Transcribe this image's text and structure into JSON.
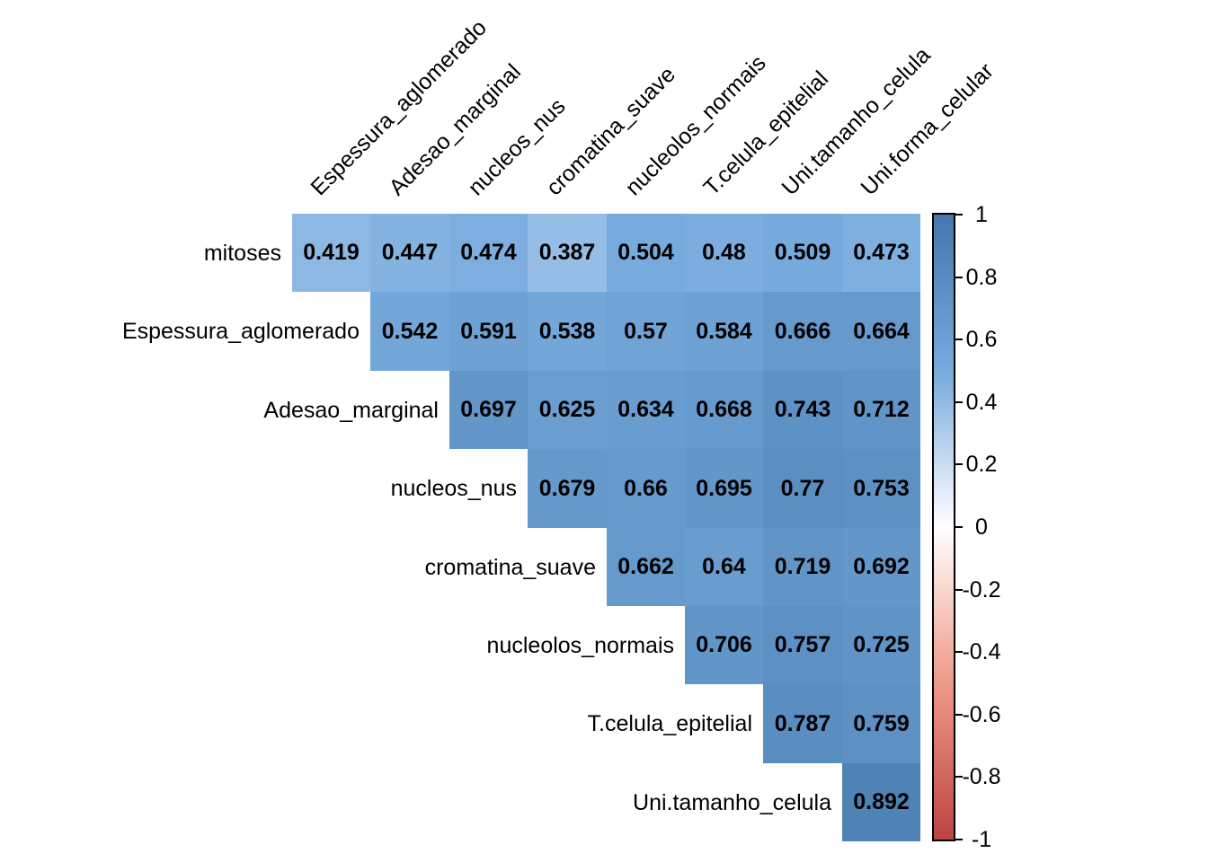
{
  "figure": {
    "kind": "correlation-matrix-plot",
    "background": "#FFFFFF"
  },
  "chart_data": {
    "type": "heatmap",
    "subtype": "upper-triangle-correlation-matrix",
    "title": "",
    "row_labels": [
      "mitoses",
      "Espessura_aglomerado",
      "Adesao_marginal",
      "nucleos_nus",
      "cromatina_suave",
      "nucleolos_normais",
      "T.celula_epitelial",
      "Uni.tamanho_celula"
    ],
    "col_labels": [
      "Espessura_aglomerado",
      "Adesao_marginal",
      "nucleos_nus",
      "cromatina_suave",
      "nucleolos_normais",
      "T.celula_epitelial",
      "Uni.tamanho_celula",
      "Uni.forma_celular"
    ],
    "matrix": [
      [
        "0.419",
        "0.447",
        "0.474",
        "0.387",
        "0.504",
        "0.48",
        "0.509",
        "0.473"
      ],
      [
        null,
        "0.542",
        "0.591",
        "0.538",
        "0.57",
        "0.584",
        "0.666",
        "0.664"
      ],
      [
        null,
        null,
        "0.697",
        "0.625",
        "0.634",
        "0.668",
        "0.743",
        "0.712"
      ],
      [
        null,
        null,
        null,
        "0.679",
        "0.66",
        "0.695",
        "0.77",
        "0.753"
      ],
      [
        null,
        null,
        null,
        null,
        "0.662",
        "0.64",
        "0.719",
        "0.692"
      ],
      [
        null,
        null,
        null,
        null,
        null,
        "0.706",
        "0.757",
        "0.725"
      ],
      [
        null,
        null,
        null,
        null,
        null,
        null,
        "0.787",
        "0.759"
      ],
      [
        null,
        null,
        null,
        null,
        null,
        null,
        null,
        "0.892"
      ]
    ],
    "value_text_color": "#000000",
    "grid": false,
    "legend_position": "right",
    "colorbar": {
      "min": -1,
      "max": 1,
      "tick_labels": [
        "1",
        "0.8",
        "0.6",
        "0.4",
        "0.2",
        "0",
        "-0.2",
        "-0.4",
        "-0.6",
        "-0.8",
        "-1"
      ],
      "gradient_stops": [
        {
          "value": 1,
          "color": "#4477AA"
        },
        {
          "value": 0.5,
          "color": "#77AADD"
        },
        {
          "value": 0,
          "color": "#FFFFFF"
        },
        {
          "value": -0.5,
          "color": "#EE9988"
        },
        {
          "value": -1,
          "color": "#BB4444"
        }
      ]
    }
  }
}
